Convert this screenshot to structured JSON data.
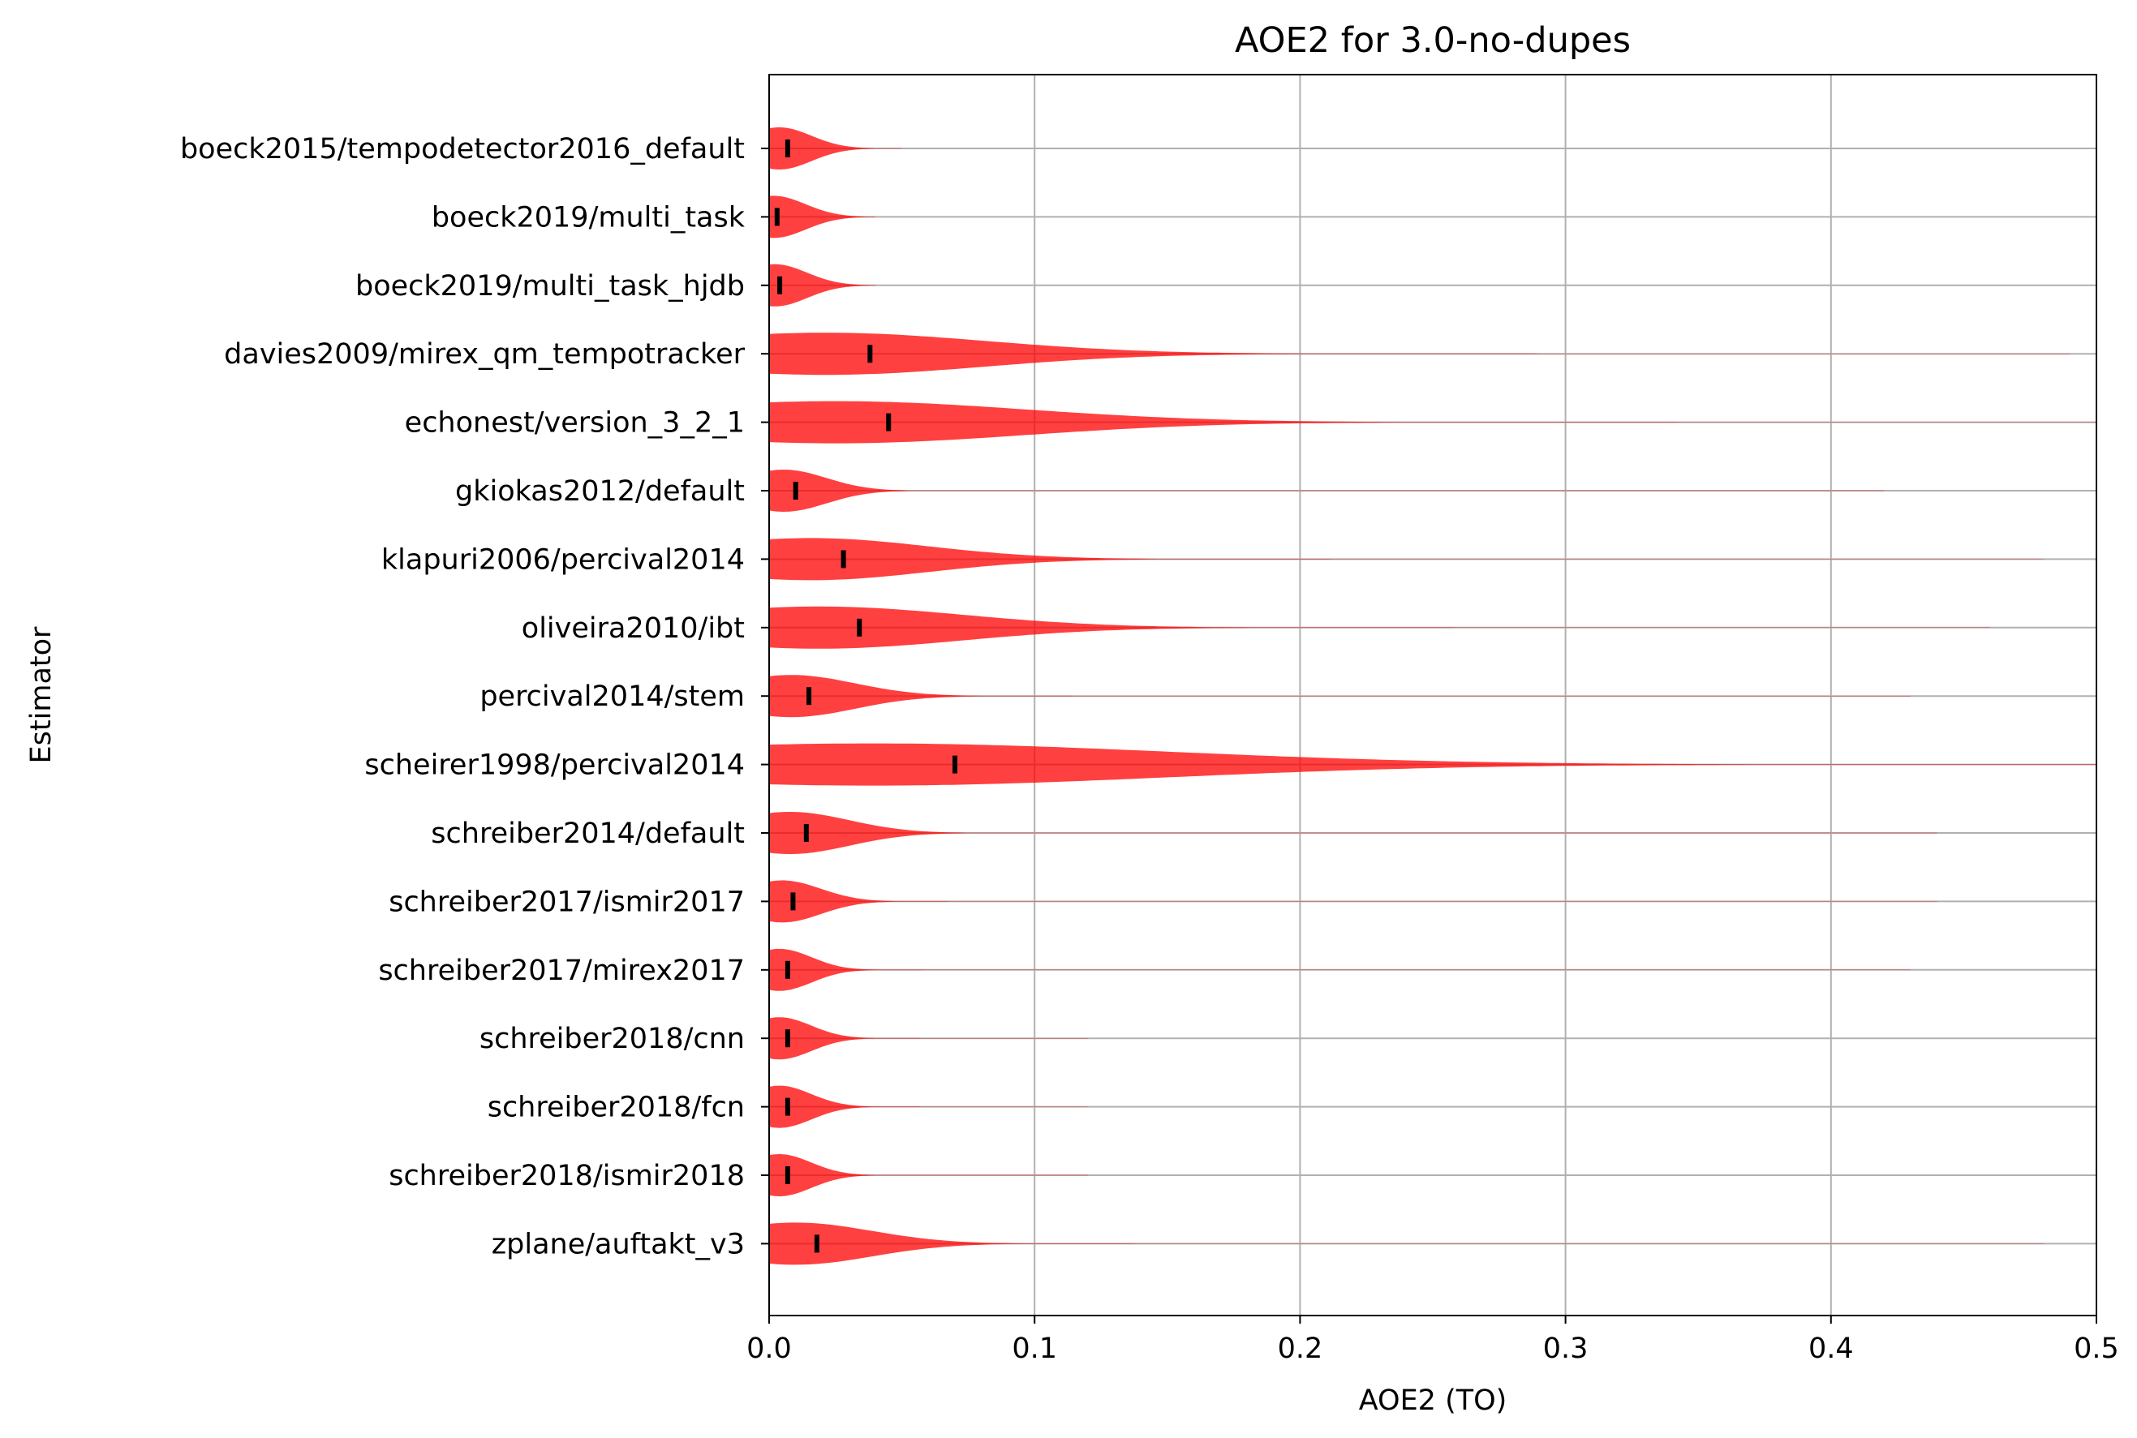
{
  "chart_data": {
    "type": "violin",
    "orientation": "horizontal",
    "title": "AOE2 for 3.0-no-dupes",
    "xlabel": "AOE2 (TO)",
    "ylabel": "Estimator",
    "xlim": [
      0.0,
      0.5
    ],
    "xticks": [
      "0.0",
      "0.1",
      "0.2",
      "0.3",
      "0.4",
      "0.5"
    ],
    "grid": true,
    "color": "#ff0000",
    "median_color": "#000000",
    "categories": [
      "boeck2015/tempodetector2016_default",
      "boeck2019/multi_task",
      "boeck2019/multi_task_hjdb",
      "davies2009/mirex_qm_tempotracker",
      "echonest/version_3_2_1",
      "gkiokas2012/default",
      "klapuri2006/percival2014",
      "oliveira2010/ibt",
      "percival2014/stem",
      "scheirer1998/percival2014",
      "schreiber2014/default",
      "schreiber2017/ismir2017",
      "schreiber2017/mirex2017",
      "schreiber2018/cnn",
      "schreiber2018/fcn",
      "schreiber2018/ismir2018",
      "zplane/auftakt_v3"
    ],
    "medians": [
      0.007,
      0.003,
      0.004,
      0.038,
      0.045,
      0.01,
      0.028,
      0.034,
      0.015,
      0.07,
      0.014,
      0.009,
      0.007,
      0.007,
      0.007,
      0.007,
      0.018
    ],
    "max_values": [
      0.05,
      0.04,
      0.04,
      0.49,
      0.5,
      0.42,
      0.48,
      0.46,
      0.43,
      0.5,
      0.44,
      0.44,
      0.43,
      0.12,
      0.12,
      0.12,
      0.48
    ]
  }
}
